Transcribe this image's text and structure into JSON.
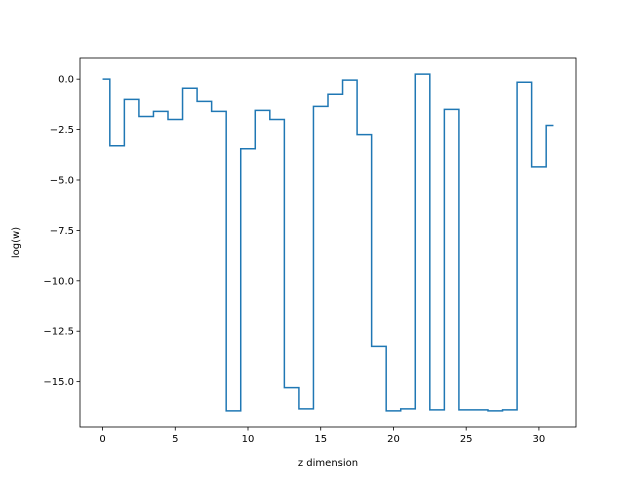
{
  "chart_data": {
    "type": "line",
    "step": "post",
    "title": "",
    "xlabel": "z dimension",
    "ylabel": "log(w)",
    "xlim": [
      -1.55,
      32.55
    ],
    "ylim": [
      -17.25,
      1.05
    ],
    "x_ticks": [
      0,
      5,
      10,
      15,
      20,
      25,
      30
    ],
    "x_tick_labels": [
      "0",
      "5",
      "10",
      "15",
      "20",
      "25",
      "30"
    ],
    "y_ticks": [
      0.0,
      -2.5,
      -5.0,
      -7.5,
      -10.0,
      -12.5,
      -15.0
    ],
    "y_tick_labels": [
      "0.0",
      "−2.5",
      "−5.0",
      "−7.5",
      "−10.0",
      "−12.5",
      "−15.0"
    ],
    "grid": false,
    "series": [
      {
        "color": "#1f77b4",
        "x": [
          0,
          1,
          2,
          3,
          4,
          5,
          6,
          7,
          8,
          9,
          10,
          11,
          12,
          13,
          14,
          15,
          16,
          17,
          18,
          19,
          20,
          21,
          22,
          23,
          24,
          25,
          26,
          27,
          28,
          29,
          30,
          31
        ],
        "values": [
          0.0,
          -3.3,
          -1.0,
          -1.85,
          -1.6,
          -2.0,
          -0.45,
          -1.1,
          -1.6,
          -16.45,
          -3.45,
          -1.55,
          -2.0,
          -15.3,
          -16.35,
          -1.35,
          -0.75,
          -0.05,
          -2.75,
          -13.25,
          -16.45,
          -16.35,
          0.25,
          -16.4,
          -1.5,
          -16.4,
          -16.4,
          -16.45,
          -16.4,
          -0.15,
          -4.35,
          -2.3
        ]
      }
    ]
  }
}
